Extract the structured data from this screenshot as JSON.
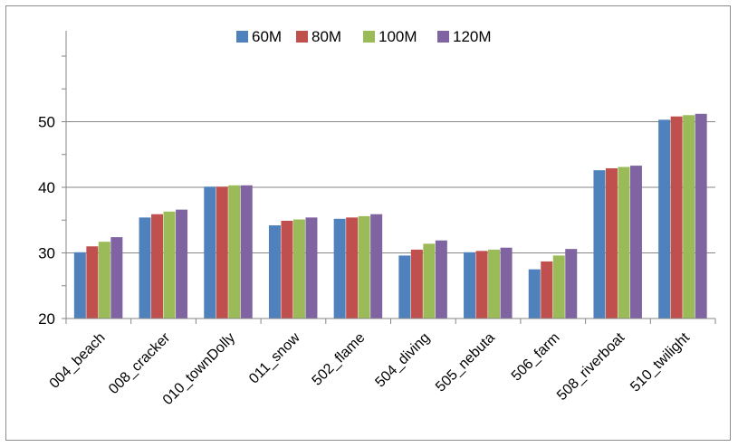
{
  "chart_data": {
    "type": "bar",
    "title": "",
    "xlabel": "",
    "ylabel": "",
    "ylim": [
      20,
      60
    ],
    "yticks": [
      20,
      30,
      40,
      50
    ],
    "grid": true,
    "legend_position": "top-center",
    "categories": [
      "004_beach",
      "008_cracker",
      "010_townDolly",
      "011_snow",
      "502_flame",
      "504_diving",
      "505_nebuta",
      "506_farm",
      "508_riverboat",
      "510_twilight"
    ],
    "series": [
      {
        "name": "60M",
        "color": "#4F81BD",
        "values": [
          30.1,
          35.4,
          40.1,
          34.2,
          35.2,
          29.6,
          30.1,
          27.5,
          42.6,
          50.3
        ]
      },
      {
        "name": "80M",
        "color": "#C0504D",
        "values": [
          31.0,
          35.9,
          40.1,
          34.9,
          35.4,
          30.5,
          30.3,
          28.7,
          42.9,
          50.8
        ]
      },
      {
        "name": "100M",
        "color": "#9BBB59",
        "values": [
          31.7,
          36.3,
          40.3,
          35.1,
          35.6,
          31.4,
          30.5,
          29.6,
          43.1,
          51.0
        ]
      },
      {
        "name": "120M",
        "color": "#8064A2",
        "values": [
          32.4,
          36.6,
          40.3,
          35.4,
          35.9,
          31.9,
          30.8,
          30.6,
          43.3,
          51.2
        ]
      }
    ]
  }
}
